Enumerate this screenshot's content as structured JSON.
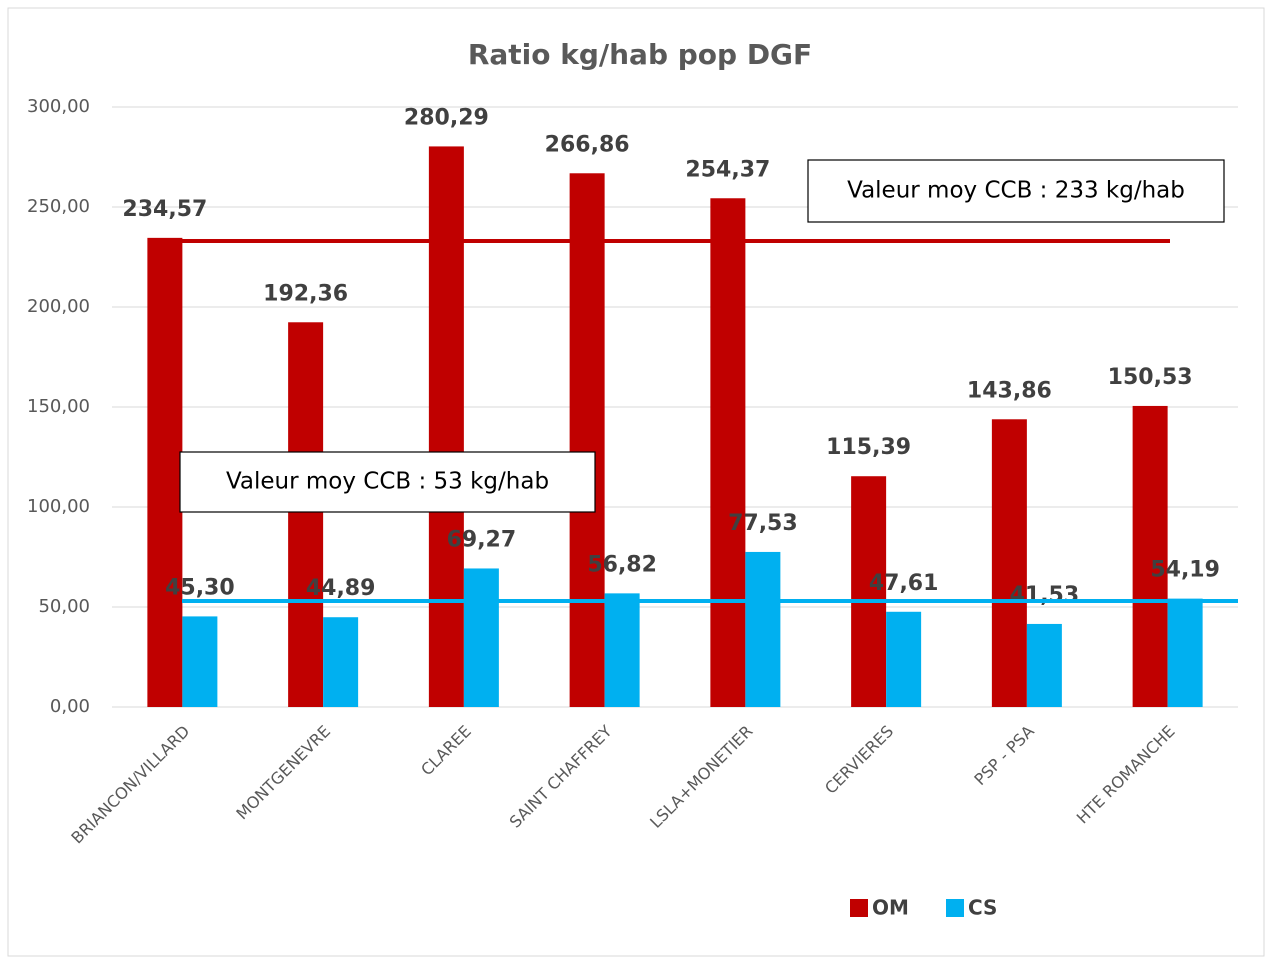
{
  "chart_data": {
    "type": "bar",
    "title": "Ratio kg/hab pop DGF",
    "categories": [
      "BRIANCON/VILLARD",
      "MONTGENEVRE",
      "CLAREE",
      "SAINT CHAFFREY",
      "LSLA+MONETIER",
      "CERVIERES",
      "PSP - PSA",
      "HTE ROMANCHE"
    ],
    "series": [
      {
        "name": "OM",
        "color": "#c00000",
        "values": [
          234.57,
          192.36,
          280.29,
          266.86,
          254.37,
          115.39,
          143.86,
          150.53
        ],
        "value_labels": [
          "234,57",
          "192,36",
          "280,29",
          "266,86",
          "254,37",
          "115,39",
          "143,86",
          "150,53"
        ]
      },
      {
        "name": "CS",
        "color": "#00b0f0",
        "values": [
          45.3,
          44.89,
          69.27,
          56.82,
          77.53,
          47.61,
          41.53,
          54.19
        ],
        "value_labels": [
          "45,30",
          "44,89",
          "69,27",
          "56,82",
          "77,53",
          "47,61",
          "41,53",
          "54,19"
        ]
      }
    ],
    "reference_lines": [
      {
        "value": 233,
        "color": "#c00000",
        "label": "Valeur moy CCB : 233 kg/hab"
      },
      {
        "value": 53,
        "color": "#00b0f0",
        "label": "Valeur moy CCB : 53 kg/hab"
      }
    ],
    "ylim": [
      0,
      300
    ],
    "yticks": [
      {
        "value": 0,
        "label": "0,00"
      },
      {
        "value": 50,
        "label": "50,00"
      },
      {
        "value": 100,
        "label": "100,00"
      },
      {
        "value": 150,
        "label": "150,00"
      },
      {
        "value": 200,
        "label": "200,00"
      },
      {
        "value": 250,
        "label": "250,00"
      },
      {
        "value": 300,
        "label": "300,00"
      }
    ],
    "grid": true,
    "legend": "bottom"
  }
}
